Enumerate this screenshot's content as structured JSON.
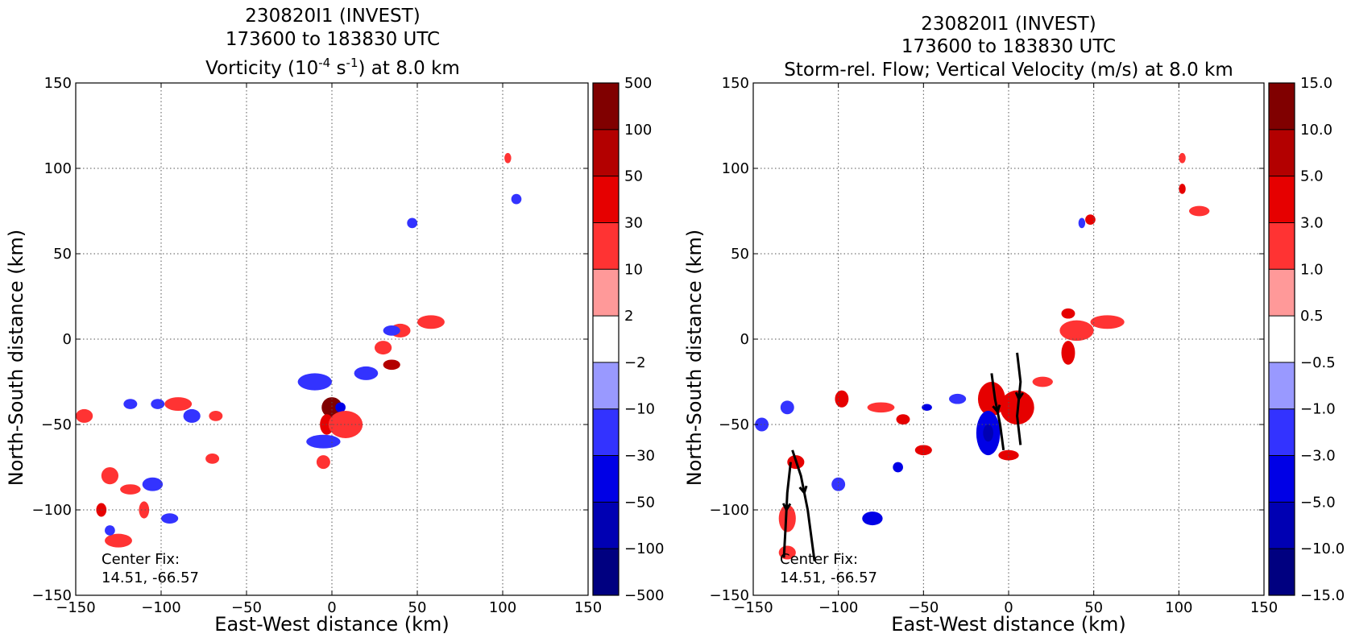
{
  "chart_data": [
    {
      "type": "heatmap",
      "title_lines": [
        "230820I1 (INVEST)",
        "173600 to 183830 UTC"
      ],
      "title_main_prefix": "Vorticity (10",
      "title_exp1": "-4",
      "title_mid": " s",
      "title_exp2": "-1",
      "title_suffix": ") at 8.0 km",
      "xlabel": "East-West distance (km)",
      "ylabel": "North-South distance (km)",
      "xlim": [
        -150,
        150
      ],
      "ylim": [
        -150,
        150
      ],
      "xticks": [
        "−150",
        "−100",
        "−50",
        "0",
        "50",
        "100",
        "150"
      ],
      "yticks": [
        "150",
        "100",
        "50",
        "0",
        "−50",
        "−100",
        "−150"
      ],
      "grid": true,
      "annotation": [
        "Center Fix:",
        "14.51, -66.57"
      ],
      "colorbar_labels": [
        "500",
        "100",
        "50",
        "30",
        "10",
        "2",
        "−2",
        "−10",
        "−30",
        "−50",
        "−100",
        "−500"
      ],
      "blobs": [
        {
          "x": 0,
          "y": -40,
          "rx": 6,
          "ry": 6,
          "level": 1
        },
        {
          "x": 5,
          "y": -40,
          "rx": 3,
          "ry": 3,
          "level": -3
        },
        {
          "x": -3,
          "y": -50,
          "rx": 4,
          "ry": 6,
          "level": 3
        },
        {
          "x": 8,
          "y": -50,
          "rx": 10,
          "ry": 8,
          "level": 4
        },
        {
          "x": 35,
          "y": -15,
          "rx": 5,
          "ry": 3,
          "level": 2
        },
        {
          "x": 58,
          "y": 10,
          "rx": 8,
          "ry": 4,
          "level": 4
        },
        {
          "x": 40,
          "y": 5,
          "rx": 6,
          "ry": 4,
          "level": 4
        },
        {
          "x": 30,
          "y": -5,
          "rx": 5,
          "ry": 4,
          "level": 4
        },
        {
          "x": -10,
          "y": -25,
          "rx": 10,
          "ry": 5,
          "level": -4
        },
        {
          "x": 20,
          "y": -20,
          "rx": 7,
          "ry": 4,
          "level": -4
        },
        {
          "x": 35,
          "y": 5,
          "rx": 5,
          "ry": 3,
          "level": -4
        },
        {
          "x": -5,
          "y": -60,
          "rx": 10,
          "ry": 4,
          "level": -4
        },
        {
          "x": -5,
          "y": -72,
          "rx": 4,
          "ry": 4,
          "level": 4
        },
        {
          "x": 47,
          "y": 68,
          "rx": 3,
          "ry": 3,
          "level": -4
        },
        {
          "x": 103,
          "y": 106,
          "rx": 2,
          "ry": 3,
          "level": 4
        },
        {
          "x": 108,
          "y": 82,
          "rx": 3,
          "ry": 3,
          "level": -4
        },
        {
          "x": -90,
          "y": -38,
          "rx": 8,
          "ry": 4,
          "level": 4
        },
        {
          "x": -102,
          "y": -38,
          "rx": 4,
          "ry": 3,
          "level": -4
        },
        {
          "x": -82,
          "y": -45,
          "rx": 5,
          "ry": 4,
          "level": -4
        },
        {
          "x": -68,
          "y": -45,
          "rx": 4,
          "ry": 3,
          "level": 4
        },
        {
          "x": -130,
          "y": -80,
          "rx": 5,
          "ry": 5,
          "level": 4
        },
        {
          "x": -118,
          "y": -88,
          "rx": 6,
          "ry": 3,
          "level": 4
        },
        {
          "x": -105,
          "y": -85,
          "rx": 6,
          "ry": 4,
          "level": -4
        },
        {
          "x": -135,
          "y": -100,
          "rx": 3,
          "ry": 4,
          "level": 3
        },
        {
          "x": -125,
          "y": -118,
          "rx": 8,
          "ry": 4,
          "level": 4
        },
        {
          "x": -130,
          "y": -112,
          "rx": 3,
          "ry": 3,
          "level": -4
        },
        {
          "x": -95,
          "y": -105,
          "rx": 5,
          "ry": 3,
          "level": -4
        },
        {
          "x": -70,
          "y": -70,
          "rx": 4,
          "ry": 3,
          "level": 4
        },
        {
          "x": -145,
          "y": -45,
          "rx": 5,
          "ry": 4,
          "level": 4
        },
        {
          "x": -118,
          "y": -38,
          "rx": 4,
          "ry": 3,
          "level": -4
        },
        {
          "x": -110,
          "y": -100,
          "rx": 3,
          "ry": 5,
          "level": 4
        }
      ],
      "streamlines": []
    },
    {
      "type": "heatmap",
      "title_lines": [
        "230820I1 (INVEST)",
        "173600 to 183830 UTC"
      ],
      "title_main": "Storm-rel. Flow; Vertical Velocity (m/s) at 8.0 km",
      "xlabel": "East-West distance (km)",
      "ylabel": "North-South distance (km)",
      "xlim": [
        -150,
        150
      ],
      "ylim": [
        -150,
        150
      ],
      "xticks": [
        "−150",
        "−100",
        "−50",
        "0",
        "50",
        "100",
        "150"
      ],
      "yticks": [
        "150",
        "100",
        "50",
        "0",
        "−50",
        "−100",
        "−150"
      ],
      "grid": true,
      "annotation": [
        "Center Fix:",
        "14.51, -66.57"
      ],
      "colorbar_labels": [
        "15.0",
        "10.0",
        "5.0",
        "3.0",
        "1.0",
        "0.5",
        "−0.5",
        "−1.0",
        "−3.0",
        "−5.0",
        "−10.0",
        "−15.0"
      ],
      "blobs": [
        {
          "x": -10,
          "y": -35,
          "rx": 8,
          "ry": 10,
          "level": 3
        },
        {
          "x": 5,
          "y": -40,
          "rx": 10,
          "ry": 10,
          "level": 3
        },
        {
          "x": -12,
          "y": -55,
          "rx": 7,
          "ry": 13,
          "level": -3
        },
        {
          "x": -12,
          "y": -55,
          "rx": 3,
          "ry": 5,
          "level": -2
        },
        {
          "x": 35,
          "y": -8,
          "rx": 4,
          "ry": 7,
          "level": 3
        },
        {
          "x": 40,
          "y": 5,
          "rx": 10,
          "ry": 6,
          "level": 4
        },
        {
          "x": 58,
          "y": 10,
          "rx": 10,
          "ry": 4,
          "level": 4
        },
        {
          "x": 35,
          "y": 15,
          "rx": 4,
          "ry": 3,
          "level": 3
        },
        {
          "x": 20,
          "y": -25,
          "rx": 6,
          "ry": 3,
          "level": 4
        },
        {
          "x": 0,
          "y": -68,
          "rx": 6,
          "ry": 3,
          "level": 3
        },
        {
          "x": 48,
          "y": 70,
          "rx": 3,
          "ry": 3,
          "level": 3
        },
        {
          "x": 43,
          "y": 68,
          "rx": 2,
          "ry": 3,
          "level": -4
        },
        {
          "x": 102,
          "y": 106,
          "rx": 2,
          "ry": 3,
          "level": 4
        },
        {
          "x": 102,
          "y": 88,
          "rx": 2,
          "ry": 3,
          "level": 3
        },
        {
          "x": 112,
          "y": 75,
          "rx": 6,
          "ry": 3,
          "level": 4
        },
        {
          "x": -98,
          "y": -35,
          "rx": 4,
          "ry": 5,
          "level": 3
        },
        {
          "x": -75,
          "y": -40,
          "rx": 8,
          "ry": 3,
          "level": 4
        },
        {
          "x": -62,
          "y": -47,
          "rx": 4,
          "ry": 3,
          "level": 3
        },
        {
          "x": -50,
          "y": -65,
          "rx": 5,
          "ry": 3,
          "level": 3
        },
        {
          "x": -48,
          "y": -40,
          "rx": 3,
          "ry": 2,
          "level": -3
        },
        {
          "x": -125,
          "y": -72,
          "rx": 5,
          "ry": 4,
          "level": 3
        },
        {
          "x": -80,
          "y": -105,
          "rx": 6,
          "ry": 4,
          "level": -3
        },
        {
          "x": -130,
          "y": -105,
          "rx": 5,
          "ry": 8,
          "level": 4
        },
        {
          "x": -130,
          "y": -125,
          "rx": 5,
          "ry": 4,
          "level": 4
        },
        {
          "x": -130,
          "y": -40,
          "rx": 4,
          "ry": 4,
          "level": -4
        },
        {
          "x": -145,
          "y": -50,
          "rx": 4,
          "ry": 4,
          "level": -4
        },
        {
          "x": -100,
          "y": -85,
          "rx": 4,
          "ry": 4,
          "level": -4
        },
        {
          "x": -30,
          "y": -35,
          "rx": 5,
          "ry": 3,
          "level": -4
        },
        {
          "x": -65,
          "y": -75,
          "rx": 3,
          "ry": 3,
          "level": -3
        }
      ],
      "streamlines": [
        {
          "points": [
            [
              -10,
              -20
            ],
            [
              -8,
              -35
            ],
            [
              -5,
              -50
            ],
            [
              -3,
              -65
            ]
          ],
          "arrow_at": 1
        },
        {
          "points": [
            [
              5,
              -8
            ],
            [
              7,
              -25
            ],
            [
              5,
              -45
            ],
            [
              7,
              -62
            ]
          ],
          "arrow_at": 1
        },
        {
          "points": [
            [
              -128,
              -72
            ],
            [
              -130,
              -90
            ],
            [
              -131,
              -110
            ],
            [
              -132,
              -128
            ]
          ],
          "arrow_at": 1
        },
        {
          "points": [
            [
              -127,
              -65
            ],
            [
              -122,
              -80
            ],
            [
              -118,
              -100
            ],
            [
              -114,
              -130
            ]
          ],
          "arrow_at": 1
        }
      ]
    }
  ]
}
